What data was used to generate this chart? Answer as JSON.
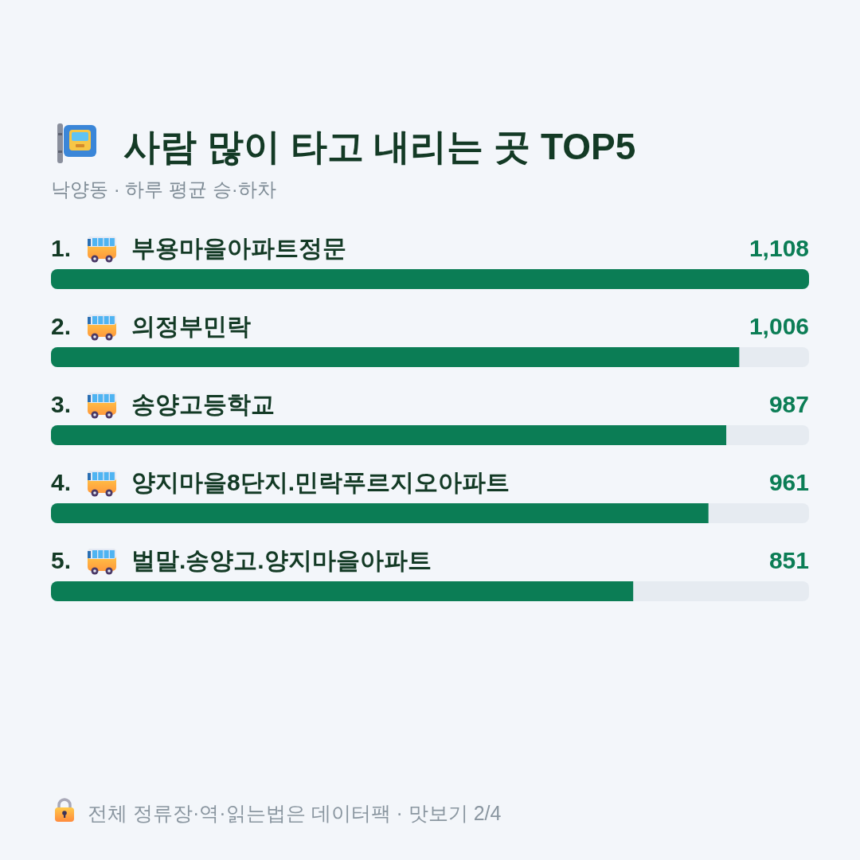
{
  "chart_data": {
    "type": "bar",
    "orientation": "horizontal",
    "title": "사람 많이 타고 내리는 곳 TOP5",
    "subtitle": "낙양동 · 하루 평균 승·하차",
    "categories": [
      "1. 부용마을아파트정문",
      "2. 의정부민락",
      "3. 송양고등학교",
      "4. 양지마을8단지.민락푸르지오아파트",
      "5. 벌말.송양고.양지마을아파트"
    ],
    "values": [
      1108,
      1006,
      987,
      961,
      851
    ],
    "color": "#0b7d55",
    "value_labels": [
      "1,108",
      "1,006",
      "987",
      "961",
      "851"
    ],
    "annotations": [
      "전체 정류장·역·읽는법은 데이터팩 · 맛보기 2/4"
    ]
  }
}
